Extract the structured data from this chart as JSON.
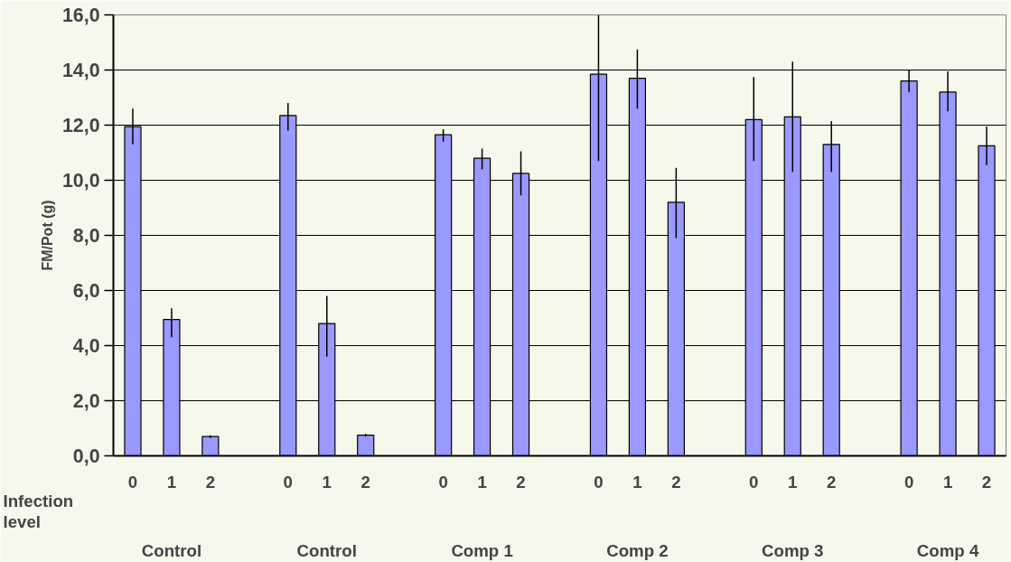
{
  "chart_data": {
    "type": "bar",
    "ylabel": "FM/Pot (g)",
    "xlabel": "Infection level",
    "categories": [
      "0",
      "1",
      "2",
      null,
      "0",
      "1",
      "2",
      null,
      "0",
      "1",
      "2",
      null,
      "0",
      "1",
      "2",
      null,
      "0",
      "1",
      "2",
      null,
      "0",
      "1",
      "2"
    ],
    "series": [
      {
        "color": "#9999ff",
        "values": [
          11.95,
          4.95,
          0.7,
          null,
          12.35,
          4.8,
          0.75,
          null,
          11.65,
          10.8,
          10.25,
          null,
          13.85,
          13.7,
          9.2,
          null,
          12.2,
          12.3,
          11.3,
          null,
          13.6,
          13.2,
          11.25
        ],
        "errors": [
          [
            11.3,
            12.6
          ],
          [
            4.3,
            5.35
          ],
          [
            0.65,
            0.75
          ],
          null,
          [
            11.8,
            12.8
          ],
          [
            3.6,
            5.8
          ],
          [
            0.7,
            0.8
          ],
          null,
          [
            11.4,
            11.85
          ],
          [
            10.4,
            11.15
          ],
          [
            9.45,
            11.05
          ],
          null,
          [
            10.7,
            16.0
          ],
          [
            12.6,
            14.75
          ],
          [
            7.9,
            10.45
          ],
          null,
          [
            10.7,
            13.75
          ],
          [
            10.3,
            14.3
          ],
          [
            10.3,
            12.15
          ],
          null,
          [
            13.2,
            14.0
          ],
          [
            12.5,
            13.95
          ],
          [
            10.55,
            11.95
          ]
        ]
      }
    ],
    "ylim": [
      0,
      16
    ],
    "yticks": [
      {
        "value": 0,
        "label": "0,0"
      },
      {
        "value": 2,
        "label": "2,0"
      },
      {
        "value": 4,
        "label": "4,0"
      },
      {
        "value": 6,
        "label": "6,0"
      },
      {
        "value": 8,
        "label": "8,0"
      },
      {
        "value": 10,
        "label": "10,0"
      },
      {
        "value": 12,
        "label": "12,0"
      },
      {
        "value": 14,
        "label": "14,0"
      },
      {
        "value": 16,
        "label": "16,0"
      }
    ],
    "grid": "y",
    "annotations": [
      "Control",
      "Control",
      "Comp 1",
      "Comp 2",
      "Comp 3",
      "Comp 4"
    ]
  }
}
